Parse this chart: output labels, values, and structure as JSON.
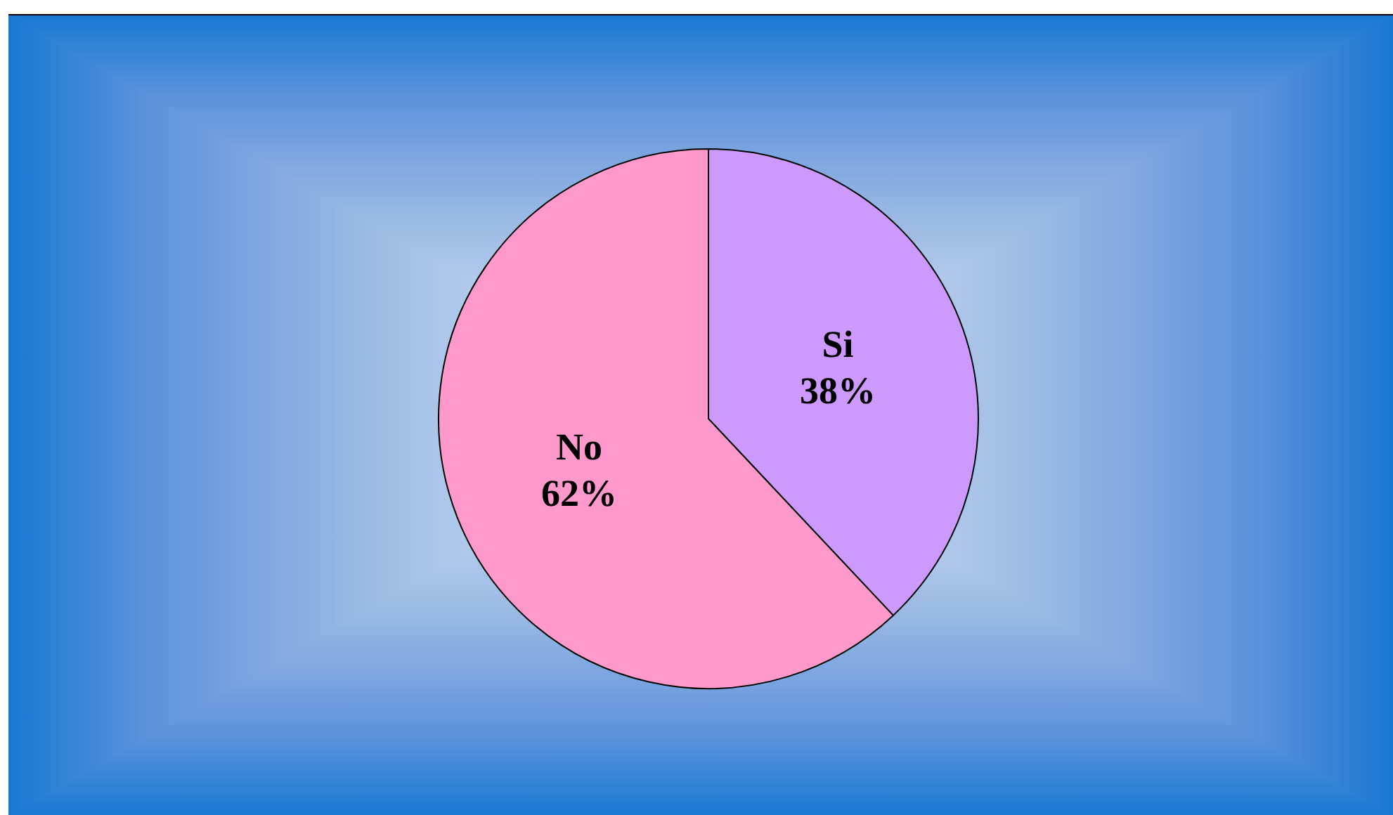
{
  "chart_data": {
    "type": "pie",
    "categories": [
      "Si",
      "No"
    ],
    "values": [
      38,
      62
    ],
    "colors": [
      "#cc99ff",
      "#ff99cc"
    ],
    "value_labels": [
      "38%",
      "62%"
    ]
  }
}
